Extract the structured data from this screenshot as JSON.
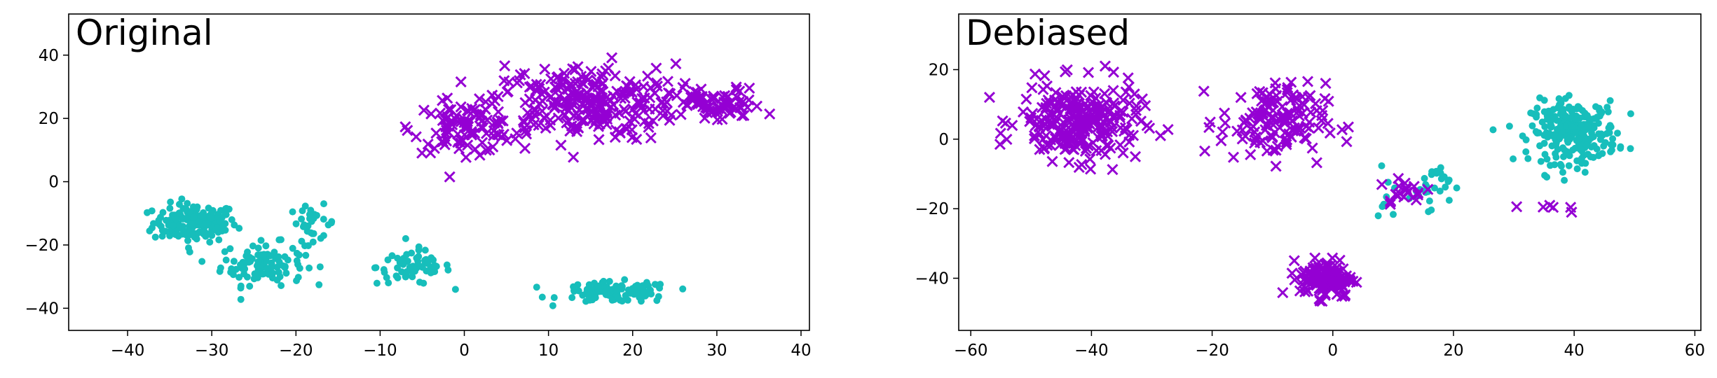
{
  "chart_data": [
    {
      "type": "scatter",
      "title": "Original",
      "xlim": [
        -47,
        41
      ],
      "ylim": [
        -47,
        53
      ],
      "xticks": [
        -40,
        -30,
        -20,
        -10,
        0,
        10,
        20,
        30,
        40
      ],
      "yticks": [
        -40,
        -20,
        0,
        20,
        40
      ],
      "xticklabels": [
        "−40",
        "−30",
        "−20",
        "−10",
        "0",
        "10",
        "20",
        "30",
        "40"
      ],
      "yticklabels": [
        "−40",
        "−20",
        "0",
        "20",
        "40"
      ],
      "series": [
        {
          "marker": "circle",
          "color": "#17BEBB",
          "clusters": [
            {
              "center": [
                -32,
                -13
              ],
              "spread": [
                4.5,
                5.5
              ],
              "count": 160
            },
            {
              "center": [
                -24,
                -26
              ],
              "spread": [
                4.5,
                6
              ],
              "count": 110
            },
            {
              "center": [
                -18,
                -13
              ],
              "spread": [
                2.5,
                5
              ],
              "count": 30
            },
            {
              "center": [
                -6,
                -27
              ],
              "spread": [
                4,
                5
              ],
              "count": 70
            },
            {
              "center": [
                18,
                -35
              ],
              "spread": [
                6,
                3
              ],
              "count": 110
            }
          ]
        },
        {
          "marker": "x",
          "color": "#9400D3",
          "clusters": [
            {
              "center": [
                0,
                17
              ],
              "spread": [
                5.5,
                7
              ],
              "count": 90
            },
            {
              "center": [
                14,
                25
              ],
              "spread": [
                10,
                11
              ],
              "count": 260
            },
            {
              "center": [
                30,
                24
              ],
              "spread": [
                5,
                5
              ],
              "count": 70
            }
          ]
        }
      ]
    },
    {
      "type": "scatter",
      "title": "Debiased",
      "xlim": [
        -62,
        61
      ],
      "ylim": [
        -55,
        36
      ],
      "xticks": [
        -60,
        -40,
        -20,
        0,
        20,
        40,
        60
      ],
      "yticks": [
        -40,
        -20,
        0,
        20
      ],
      "xticklabels": [
        "−60",
        "−40",
        "−20",
        "0",
        "20",
        "40",
        "60"
      ],
      "yticklabels": [
        "−40",
        "−20",
        "0",
        "20"
      ],
      "series": [
        {
          "marker": "circle",
          "color": "#17BEBB",
          "clusters": [
            {
              "center": [
                40,
                2
              ],
              "spread": [
                6.5,
                8
              ],
              "count": 260
            },
            {
              "center": [
                16,
                -13
              ],
              "spread": [
                3,
                6
              ],
              "count": 30
            },
            {
              "center": [
                9,
                -20
              ],
              "spread": [
                1.5,
                10
              ],
              "count": 8
            }
          ]
        },
        {
          "marker": "x",
          "color": "#9400D3",
          "clusters": [
            {
              "center": [
                -42,
                5
              ],
              "spread": [
                9,
                10
              ],
              "count": 260
            },
            {
              "center": [
                -10,
                5
              ],
              "spread": [
                8,
                10
              ],
              "count": 140
            },
            {
              "center": [
                -1,
                -40
              ],
              "spread": [
                4,
                5
              ],
              "count": 130
            },
            {
              "center": [
                12,
                -15
              ],
              "spread": [
                4,
                4
              ],
              "count": 20
            },
            {
              "center": [
                36,
                -20
              ],
              "spread": [
                5,
                2
              ],
              "count": 6
            }
          ]
        }
      ]
    }
  ]
}
